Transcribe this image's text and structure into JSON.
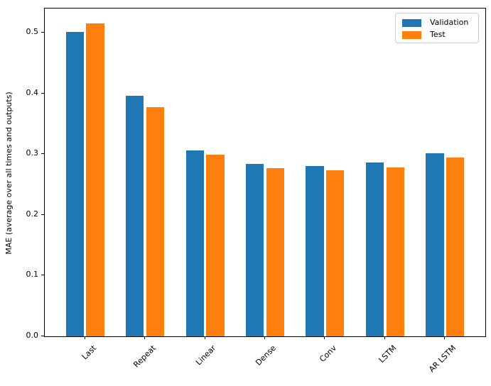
{
  "figure": {
    "background": "#ffffff"
  },
  "chart_data": {
    "type": "bar",
    "title": "",
    "xlabel": "",
    "ylabel": "MAE (average over all times and outputs)",
    "categories": [
      "Last",
      "Repeat",
      "Linear",
      "Dense",
      "Conv",
      "LSTM",
      "AR LSTM"
    ],
    "series": [
      {
        "name": "Validation",
        "color": "#1f77b4",
        "values": [
          0.502,
          0.396,
          0.306,
          0.284,
          0.281,
          0.286,
          0.301
        ]
      },
      {
        "name": "Test",
        "color": "#ff7f0e",
        "values": [
          0.515,
          0.377,
          0.299,
          0.277,
          0.274,
          0.278,
          0.295
        ]
      }
    ],
    "ytick_labels": [
      "0.0",
      "0.1",
      "0.2",
      "0.3",
      "0.4",
      "0.5"
    ],
    "ytick_values": [
      0.0,
      0.1,
      0.2,
      0.3,
      0.4,
      0.5
    ],
    "ylim": [
      0,
      0.54
    ],
    "xlim": [
      -0.67,
      6.67
    ],
    "bar_width": 0.3,
    "bar_offset": 0.17,
    "x_tick_rotation": 45,
    "grid": false,
    "legend": {
      "position": "upper right",
      "entries": [
        {
          "label": "Validation",
          "color": "#1f77b4"
        },
        {
          "label": "Test",
          "color": "#ff7f0e"
        }
      ]
    }
  }
}
